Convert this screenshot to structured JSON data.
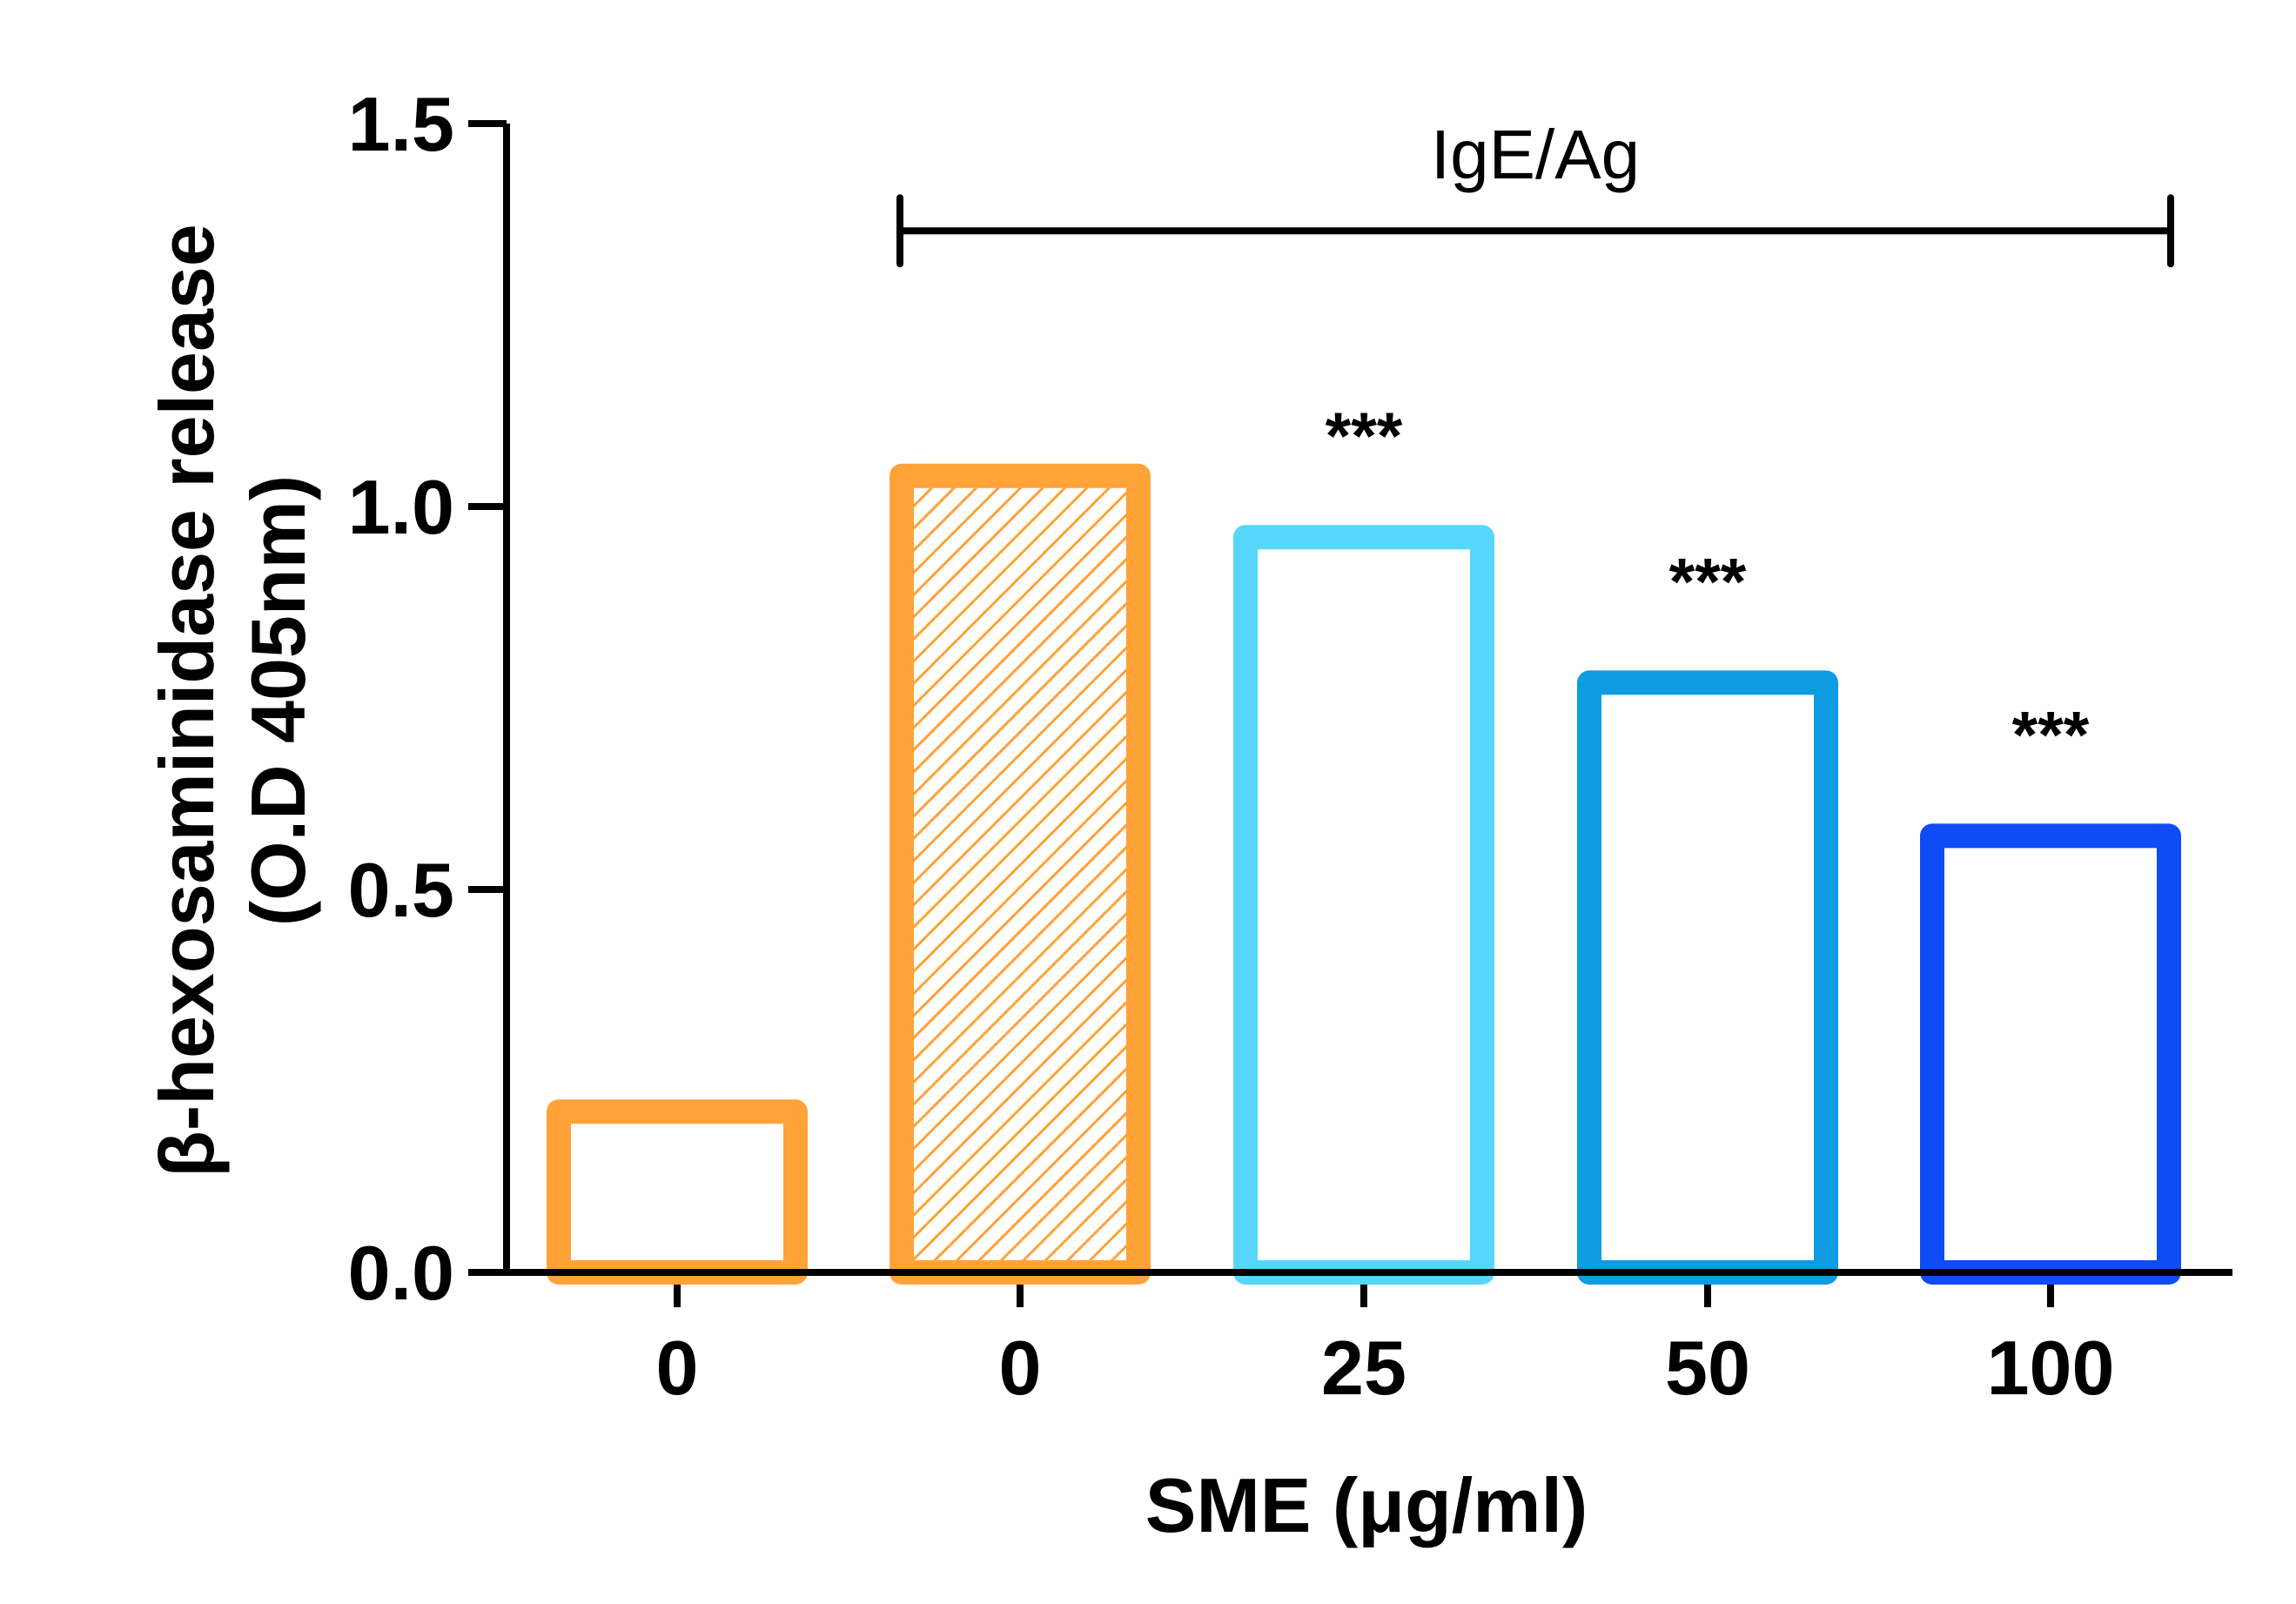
{
  "chart_data": {
    "type": "bar",
    "title": "",
    "xlabel": "SME (μg/ml)",
    "ylabel_lines": [
      "β-hexosaminidase release",
      "(O.D 405nm)"
    ],
    "ylim": [
      0,
      1.5
    ],
    "yticks": [
      {
        "value": 0.0,
        "label": "0.0"
      },
      {
        "value": 0.5,
        "label": "0.5"
      },
      {
        "value": 1.0,
        "label": "1.0"
      },
      {
        "value": 1.5,
        "label": "1.5"
      }
    ],
    "categories": [
      "0",
      "0",
      "25",
      "50",
      "100"
    ],
    "values": [
      0.21,
      1.04,
      0.96,
      0.77,
      0.57
    ],
    "bar_colors": [
      "#FFA238",
      "#FFA238",
      "#56D6FA",
      "#0E9CE2",
      "#0F4CF5"
    ],
    "bar_patterns": [
      "none",
      "hatch",
      "none",
      "none",
      "none"
    ],
    "significance": [
      "",
      "",
      "***",
      "***",
      "***"
    ],
    "bracket": {
      "label": "IgE/Ag",
      "from_category": 1,
      "to_category": 4,
      "y_value": 1.36
    },
    "grid": false,
    "legend": "none"
  }
}
